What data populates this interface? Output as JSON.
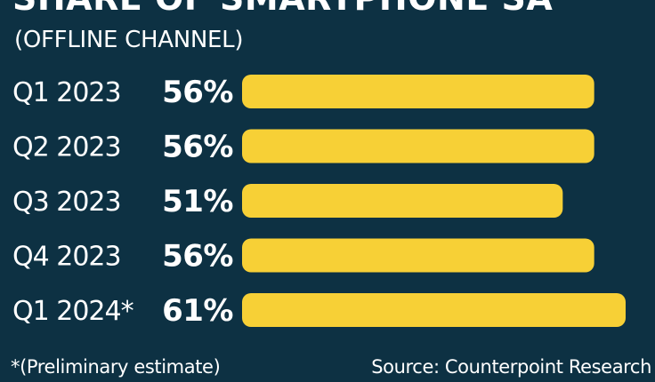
{
  "title": "SHARE OF SMARTPHONE SA",
  "subtitle": "(OFFLINE CHANNEL)",
  "footnote": "*(Preliminary estimate)",
  "source": "Source: Counterpoint Research",
  "colors": {
    "background": "#0d3143",
    "bar": "#f7d036",
    "text": "#ffffff"
  },
  "chart_data": {
    "type": "bar",
    "orientation": "horizontal",
    "title": "SHARE OF SMARTPHONE SA",
    "subtitle": "(OFFLINE CHANNEL)",
    "categories": [
      "Q1 2023",
      "Q2 2023",
      "Q3 2023",
      "Q4 2023",
      "Q1 2024*"
    ],
    "values": [
      56,
      56,
      51,
      56,
      61
    ],
    "value_labels": [
      "56%",
      "56%",
      "51%",
      "56%",
      "61%"
    ],
    "unit": "%",
    "grid": false,
    "legend": "none"
  }
}
